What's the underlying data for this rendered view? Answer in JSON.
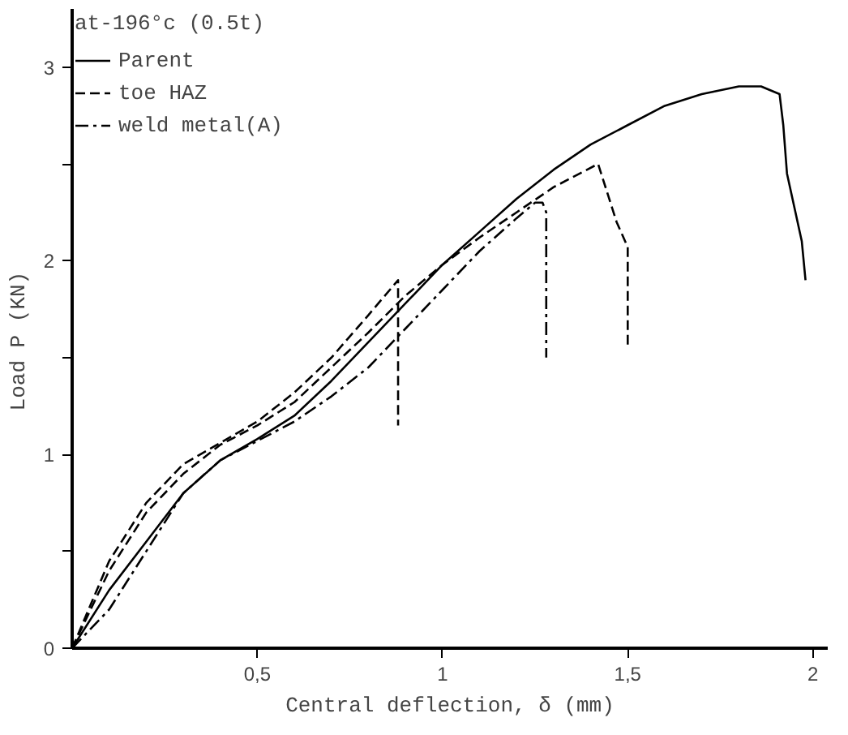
{
  "chart_data": {
    "type": "line",
    "legend_title": "at-196°c (0.5t)",
    "xlabel": "Central deflection, δ (mm)",
    "ylabel": "Load   P (KN)",
    "xlim": [
      0,
      2.04
    ],
    "ylim": [
      0,
      3.3
    ],
    "xticks": [
      {
        "value": 0.5,
        "label": "0,5"
      },
      1,
      {
        "value": 1.5,
        "label": "1,5"
      },
      2
    ],
    "yticks": [
      0,
      {
        "value": 0.5,
        "label": null
      },
      1,
      {
        "value": 1.5,
        "label": null
      },
      2,
      {
        "value": 2.5,
        "label": null
      },
      3
    ],
    "grid": false,
    "legend": "top left",
    "marker": "none",
    "series": [
      {
        "name": "Parent",
        "color": "#000000",
        "line_style": "solid",
        "x": [
          0,
          0.1,
          0.2,
          0.3,
          0.4,
          0.5,
          0.6,
          0.7,
          0.8,
          0.9,
          1.0,
          1.1,
          1.2,
          1.3,
          1.4,
          1.5,
          1.6,
          1.7,
          1.8,
          1.86,
          1.91,
          1.92,
          1.93,
          1.97,
          1.98
        ],
        "values": [
          0,
          0.3,
          0.55,
          0.8,
          0.97,
          1.08,
          1.2,
          1.38,
          1.58,
          1.78,
          1.98,
          2.15,
          2.32,
          2.47,
          2.6,
          2.7,
          2.8,
          2.86,
          2.9,
          2.9,
          2.86,
          2.7,
          2.45,
          2.1,
          1.9
        ]
      },
      {
        "name": "toe HAZ",
        "color": "#000000",
        "line_style": "dashed",
        "x": [
          0,
          0.1,
          0.2,
          0.3,
          0.4,
          0.5,
          0.6,
          0.7,
          0.8,
          0.9,
          1.0,
          1.1,
          1.2,
          1.3,
          1.42,
          1.47,
          1.5,
          1.5
        ],
        "values": [
          0,
          0.4,
          0.7,
          0.9,
          1.05,
          1.15,
          1.27,
          1.45,
          1.63,
          1.82,
          1.98,
          2.12,
          2.25,
          2.38,
          2.5,
          2.2,
          2.07,
          1.55
        ]
      },
      {
        "name": "weld metal(A)",
        "color": "#000000",
        "line_style": "dashdot",
        "x": [
          0,
          0.1,
          0.2,
          0.3,
          0.4,
          0.5,
          0.6,
          0.7,
          0.8,
          0.9,
          1.0,
          1.1,
          1.2,
          1.25,
          1.27,
          1.28,
          1.28
        ],
        "values": [
          0,
          0.2,
          0.5,
          0.8,
          0.97,
          1.07,
          1.17,
          1.3,
          1.45,
          1.65,
          1.85,
          2.05,
          2.22,
          2.3,
          2.3,
          2.25,
          1.5
        ]
      },
      {
        "color": "#000000",
        "line_style": "dashed",
        "x": [
          0,
          0.1,
          0.2,
          0.3,
          0.4,
          0.5,
          0.6,
          0.7,
          0.8,
          0.88,
          0.88
        ],
        "values": [
          0,
          0.45,
          0.75,
          0.95,
          1.06,
          1.17,
          1.32,
          1.5,
          1.72,
          1.9,
          1.15
        ]
      }
    ]
  }
}
